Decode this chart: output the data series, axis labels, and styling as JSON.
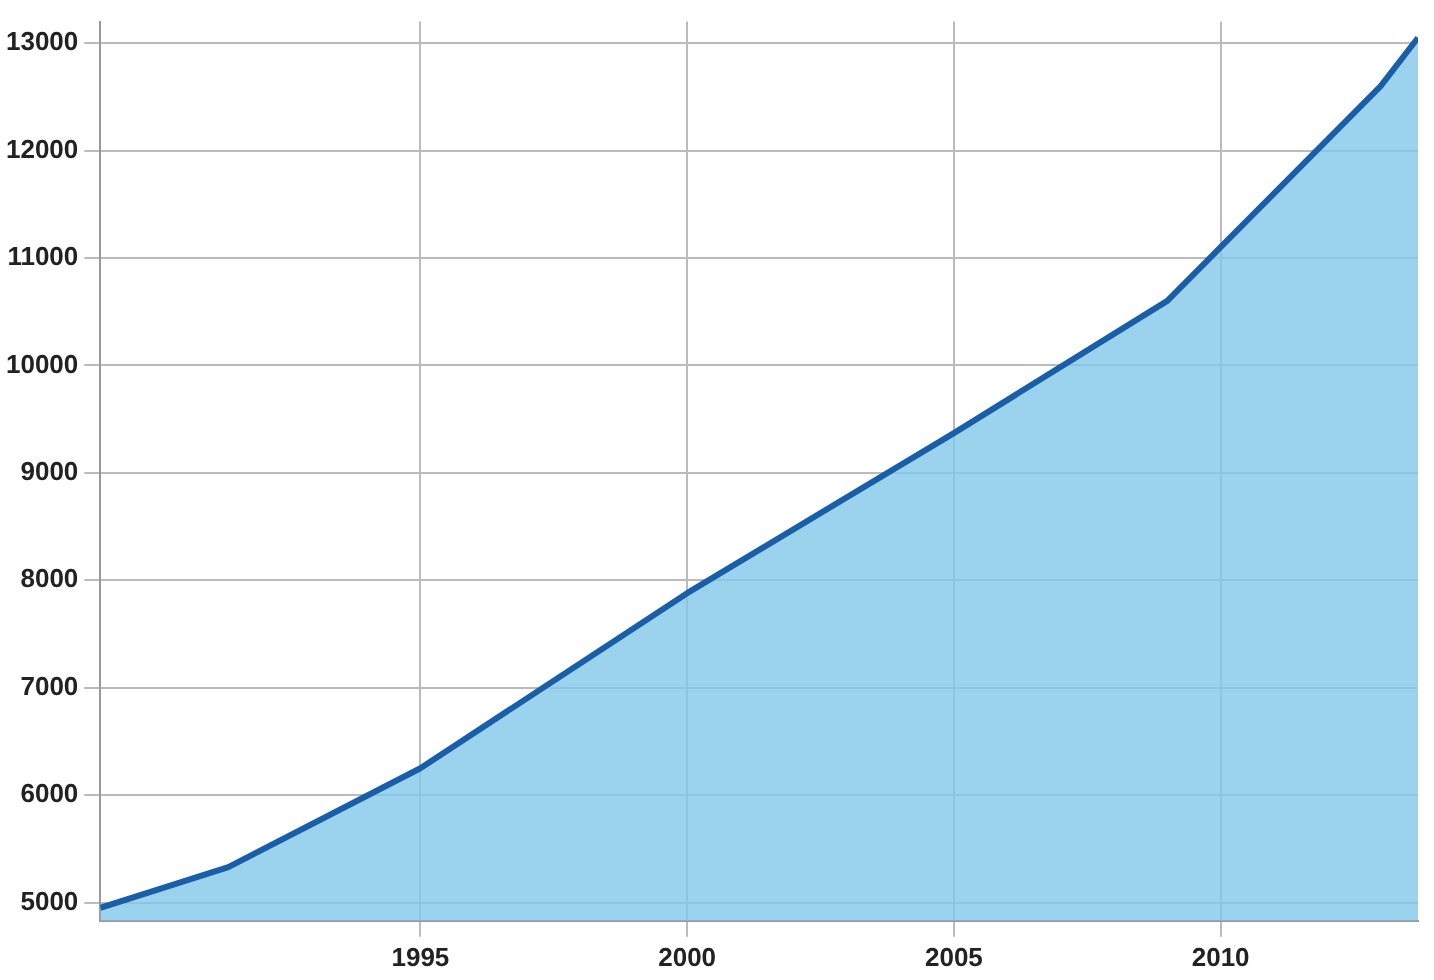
{
  "chart_data": {
    "type": "area",
    "x": [
      1989,
      1991.4,
      1995,
      2000,
      2005,
      2009,
      2010,
      2013,
      2013.7
    ],
    "series": [
      {
        "color": "#1a5ea8",
        "values": [
          4950,
          5330,
          6250,
          7880,
          9370,
          10600,
          11100,
          12600,
          13050
        ]
      }
    ],
    "xlim": [
      1989,
      2013.7
    ],
    "xticks": [
      1995,
      2000,
      2005,
      2010
    ],
    "ylim": [
      4830,
      13200
    ],
    "yticks": [
      5000,
      6000,
      7000,
      8000,
      9000,
      10000,
      11000,
      12000,
      13000
    ],
    "grid": true,
    "legend": false,
    "marker": "none",
    "line_style": "solid"
  }
}
